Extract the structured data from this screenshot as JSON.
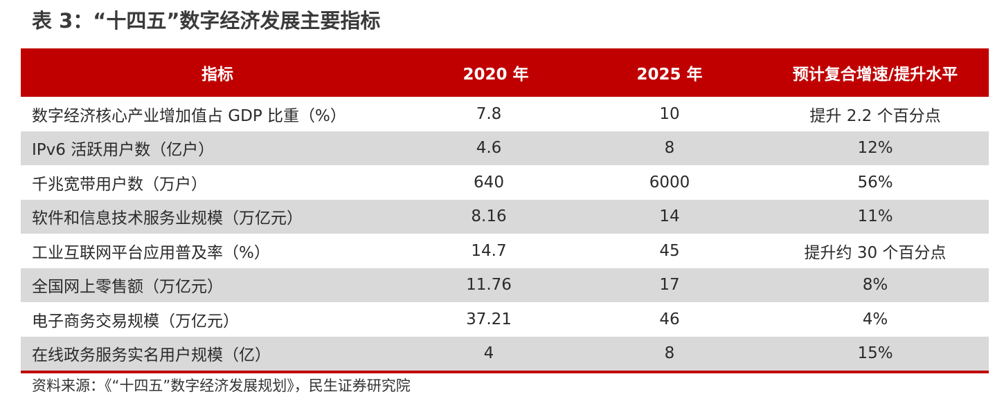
{
  "title": "表 3：“十四五”数字经济发展主要指标",
  "table": {
    "headers": [
      "指标",
      "2020 年",
      "2025 年",
      "预计复合增速/提升水平"
    ],
    "rows": [
      [
        "数字经济核心产业增加值占 GDP 比重（%）",
        "7.8",
        "10",
        "提升 2.2 个百分点"
      ],
      [
        "IPv6 活跃用户数（亿户）",
        "4.6",
        "8",
        "12%"
      ],
      [
        "千兆宽带用户数（万户）",
        "640",
        "6000",
        "56%"
      ],
      [
        "软件和信息技术服务业规模（万亿元）",
        "8.16",
        "14",
        "11%"
      ],
      [
        "工业互联网平台应用普及率（%）",
        "14.7",
        "45",
        "提升约 30 个百分点"
      ],
      [
        "全国网上零售额（万亿元）",
        "11.76",
        "17",
        "8%"
      ],
      [
        "电子商务交易规模（万亿元）",
        "37.21",
        "46",
        "4%"
      ],
      [
        "在线政务服务实名用户规模（亿）",
        "4",
        "8",
        "15%"
      ]
    ]
  },
  "source": "资料来源：《“十四五”数字经济发展规划》，民生证券研究院",
  "colors": {
    "header_bg": "#c00000",
    "alt_row_bg": "#d9d9d9",
    "header_text": "#ffffff"
  }
}
